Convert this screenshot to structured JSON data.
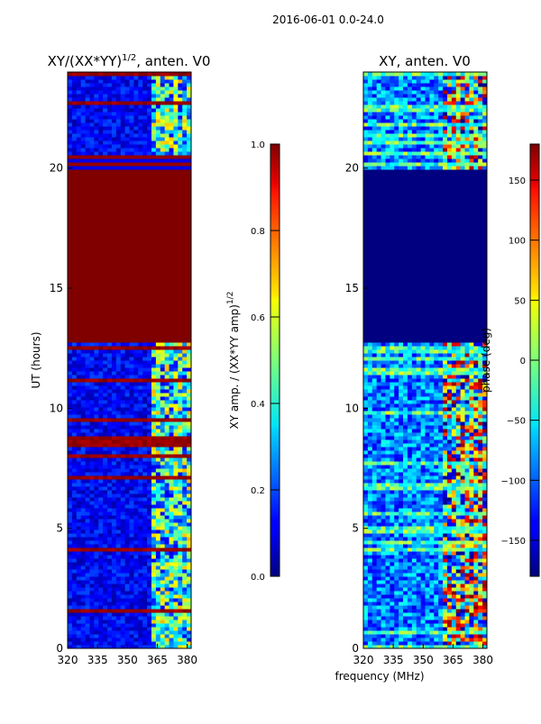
{
  "figure": {
    "header": "2016-06-01 0.0-24.0",
    "shared_xlabel": "frequency (MHz)"
  },
  "chart_data": [
    {
      "type": "heatmap",
      "title_main": "XY/(XX*YY)",
      "title_sup": "1/2",
      "title_tail": ", anten. V0",
      "xlabel": "",
      "ylabel": "UT (hours)",
      "x_ticks": [
        "320",
        "335",
        "350",
        "365",
        "380"
      ],
      "x_tick_values": [
        320,
        335,
        350,
        365,
        380
      ],
      "y_ticks": [
        "0",
        "5",
        "10",
        "15",
        "20"
      ],
      "y_tick_values": [
        0,
        5,
        10,
        15,
        20
      ],
      "xlim": [
        320,
        382
      ],
      "ylim": [
        0,
        24
      ],
      "colorbar": {
        "label_main": "XY amp. / (XX*YY amp)",
        "label_sup": "1/2",
        "ticks": [
          "0.0",
          "0.2",
          "0.4",
          "0.6",
          "0.8",
          "1.0"
        ],
        "tick_values": [
          0.0,
          0.2,
          0.4,
          0.6,
          0.8,
          1.0
        ],
        "range": [
          0.0,
          1.0
        ]
      },
      "regions": [
        {
          "ut_start": 0.0,
          "ut_end": 12.7,
          "description": "low amplitude ~0.05-0.2 with bright RFI stripes near 362-382 MHz"
        },
        {
          "ut_start": 12.7,
          "ut_end": 20.0,
          "value": 1.0
        },
        {
          "ut_start": 20.0,
          "ut_end": 20.6,
          "value": 1.0,
          "note": "striped"
        },
        {
          "ut_start": 20.6,
          "ut_end": 24.0,
          "description": "low amplitude ~0.1 with bright features near 362-382 MHz"
        }
      ]
    },
    {
      "type": "heatmap",
      "title_main": "XY, anten. V0",
      "xlabel": "frequency (MHz)",
      "ylabel": "",
      "x_ticks": [
        "320",
        "335",
        "350",
        "365",
        "380"
      ],
      "x_tick_values": [
        320,
        335,
        350,
        365,
        380
      ],
      "y_ticks": [
        "0",
        "5",
        "10",
        "15",
        "20"
      ],
      "y_tick_values": [
        0,
        5,
        10,
        15,
        20
      ],
      "xlim": [
        320,
        382
      ],
      "ylim": [
        0,
        24
      ],
      "colorbar": {
        "label_main": "phase (deg)",
        "ticks": [
          "−150",
          "−100",
          "−50",
          "0",
          "50",
          "100",
          "150"
        ],
        "tick_values": [
          -150,
          -100,
          -50,
          0,
          50,
          100,
          150
        ],
        "range": [
          -180,
          180
        ]
      },
      "regions": [
        {
          "ut_start": 0.0,
          "ut_end": 12.7,
          "description": "mixed phase, mostly -150 to -50 deg with warm features near 360-382 MHz"
        },
        {
          "ut_start": 12.7,
          "ut_end": 20.0,
          "value": -180
        },
        {
          "ut_start": 20.0,
          "ut_end": 20.6,
          "description": "striped, light green/blue lines"
        },
        {
          "ut_start": 20.6,
          "ut_end": 24.0,
          "description": "mixed phase, many colors"
        }
      ]
    }
  ]
}
